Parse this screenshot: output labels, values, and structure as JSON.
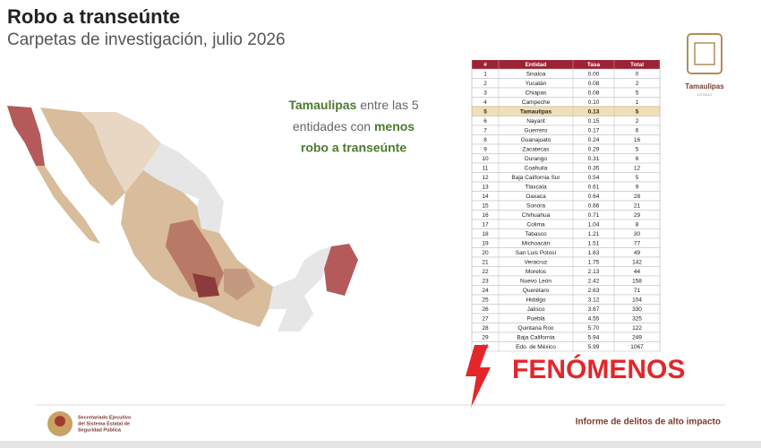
{
  "header": {
    "title": "Robo a transeúnte",
    "subtitle": "Carpetas de investigación, julio 2026"
  },
  "logo": {
    "name": "Tamaulipas",
    "tagline": "ESTADO"
  },
  "callout": {
    "line1": [
      "Tamaulipas",
      "entre las 5"
    ],
    "line2": [
      "entidades con",
      "menos"
    ],
    "line3": [
      "robo a transeúnte"
    ]
  },
  "table": {
    "columns": [
      "#",
      "Entidad",
      "Tasa",
      "Total"
    ],
    "rows": [
      [
        "1",
        "Sinaloa",
        "0.00",
        "0"
      ],
      [
        "2",
        "Yucatán",
        "0.08",
        "2"
      ],
      [
        "3",
        "Chiapas",
        "0.08",
        "5"
      ],
      [
        "4",
        "Campeche",
        "0.10",
        "1"
      ],
      [
        "5",
        "Tamaulipas",
        "0.13",
        "5"
      ],
      [
        "6",
        "Nayarit",
        "0.15",
        "2"
      ],
      [
        "7",
        "Guerrero",
        "0.17",
        "6"
      ],
      [
        "8",
        "Guanajuato",
        "0.24",
        "16"
      ],
      [
        "9",
        "Zacatecas",
        "0.29",
        "5"
      ],
      [
        "10",
        "Durango",
        "0.31",
        "6"
      ],
      [
        "11",
        "Coahuila",
        "0.35",
        "12"
      ],
      [
        "12",
        "Baja California Sur",
        "0.54",
        "5"
      ],
      [
        "13",
        "Tlaxcala",
        "0.61",
        "9"
      ],
      [
        "14",
        "Oaxaca",
        "0.64",
        "28"
      ],
      [
        "15",
        "Sonora",
        "0.66",
        "21"
      ],
      [
        "16",
        "Chihuahua",
        "0.71",
        "29"
      ],
      [
        "17",
        "Colima",
        "1.04",
        "8"
      ],
      [
        "18",
        "Tabasco",
        "1.21",
        "30"
      ],
      [
        "19",
        "Michoacán",
        "1.51",
        "77"
      ],
      [
        "20",
        "San Luis Potosí",
        "1.63",
        "49"
      ],
      [
        "21",
        "Veracruz",
        "1.75",
        "142"
      ],
      [
        "22",
        "Morelos",
        "2.13",
        "44"
      ],
      [
        "23",
        "Nuevo León",
        "2.42",
        "158"
      ],
      [
        "24",
        "Querétaro",
        "2.63",
        "71"
      ],
      [
        "25",
        "Hidalgo",
        "3.12",
        "104"
      ],
      [
        "26",
        "Jalisco",
        "3.67",
        "330"
      ],
      [
        "27",
        "Puebla",
        "4.55",
        "325"
      ],
      [
        "28",
        "Quintana Roo",
        "5.70",
        "122"
      ],
      [
        "29",
        "Baja California",
        "5.94",
        "249"
      ],
      [
        "30",
        "Edo. de México",
        "5.99",
        "1067"
      ]
    ],
    "highlight_row": 4
  },
  "watermark": "FENÓMENOS",
  "footer": {
    "agency": [
      "Secretariado Ejecutivo",
      "del Sistema Estatal de",
      "Seguridad Pública"
    ],
    "report": "Informe de delitos de alto impacto"
  }
}
